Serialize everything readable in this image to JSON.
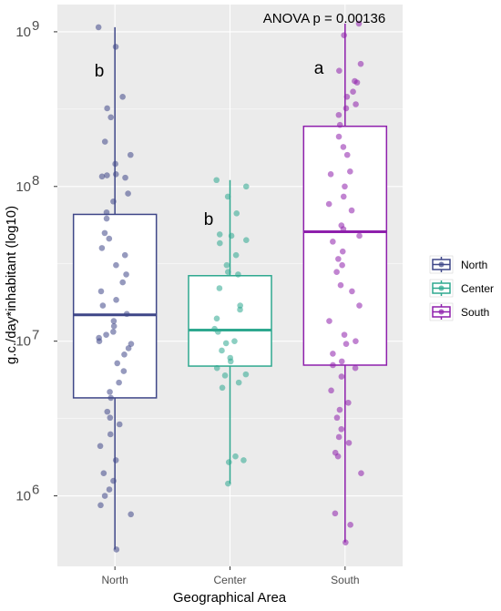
{
  "chart_data": {
    "type": "box",
    "xlabel": "Geographical Area",
    "ylabel": "g.c./day*inhabitant (log10)",
    "yscale": "log10",
    "ylim": [
      350000,
      1500000000
    ],
    "y_ticks": [
      {
        "value": 1000000,
        "base": "10",
        "exp": "6"
      },
      {
        "value": 10000000,
        "base": "10",
        "exp": "7"
      },
      {
        "value": 100000000,
        "base": "10",
        "exp": "8"
      },
      {
        "value": 1000000000,
        "base": "10",
        "exp": "9"
      }
    ],
    "annotation": "ANOVA p = 0.00136",
    "grid": true,
    "legend_position": "right",
    "categories": [
      "North",
      "Center",
      "South"
    ],
    "series": [
      {
        "name": "North",
        "color": "#3f4788",
        "group_letter": "b",
        "whisker_low": 450000,
        "q1": 4300000,
        "median": 14800000,
        "q3": 66000000,
        "whisker_high": 1070000000,
        "points": [
          1070000000,
          800000000,
          380000000,
          320000000,
          280000000,
          195000000,
          160000000,
          140000000,
          120000000,
          118000000,
          116000000,
          114000000,
          90000000,
          80000000,
          68000000,
          62000000,
          50000000,
          46000000,
          40000000,
          36000000,
          31000000,
          27000000,
          24000000,
          21000000,
          18500000,
          17000000,
          15000000,
          13500000,
          12500000,
          11500000,
          11000000,
          10500000,
          10000000,
          9600000,
          9000000,
          8200000,
          7200000,
          6400000,
          5400000,
          4700000,
          4300000,
          3500000,
          3200000,
          2900000,
          2500000,
          2100000,
          1700000,
          1400000,
          1250000,
          1100000,
          1000000,
          870000,
          760000,
          450000
        ]
      },
      {
        "name": "Center",
        "color": "#2ea88f",
        "group_letter": "b",
        "whisker_low": 1200000,
        "q1": 6900000,
        "median": 11800000,
        "q3": 26500000,
        "whisker_high": 110000000,
        "points": [
          110000000,
          100000000,
          86000000,
          67000000,
          49000000,
          48000000,
          45000000,
          43000000,
          36000000,
          31000000,
          28000000,
          27000000,
          22000000,
          17000000,
          16000000,
          14000000,
          12000000,
          11500000,
          10000000,
          9700000,
          8700000,
          7800000,
          7400000,
          6700000,
          6100000,
          6000000,
          5400000,
          5000000,
          1800000,
          1700000,
          1650000,
          1200000
        ]
      },
      {
        "name": "South",
        "color": "#8e1fac",
        "group_letter": "a",
        "whisker_low": 500000,
        "q1": 7000000,
        "median": 51000000,
        "q3": 245000000,
        "whisker_high": 1130000000,
        "points": [
          1130000000,
          950000000,
          620000000,
          560000000,
          480000000,
          470000000,
          410000000,
          380000000,
          340000000,
          320000000,
          290000000,
          250000000,
          210000000,
          180000000,
          160000000,
          125000000,
          120000000,
          100000000,
          86000000,
          77000000,
          70000000,
          56000000,
          53000000,
          48000000,
          44000000,
          38000000,
          34000000,
          31000000,
          28000000,
          23000000,
          21000000,
          17000000,
          13500000,
          11000000,
          10000000,
          9600000,
          8300000,
          7400000,
          7000000,
          6700000,
          5900000,
          4800000,
          4000000,
          3600000,
          3200000,
          2700000,
          2400000,
          2200000,
          1900000,
          1800000,
          1400000,
          770000,
          650000,
          500000
        ]
      }
    ]
  }
}
